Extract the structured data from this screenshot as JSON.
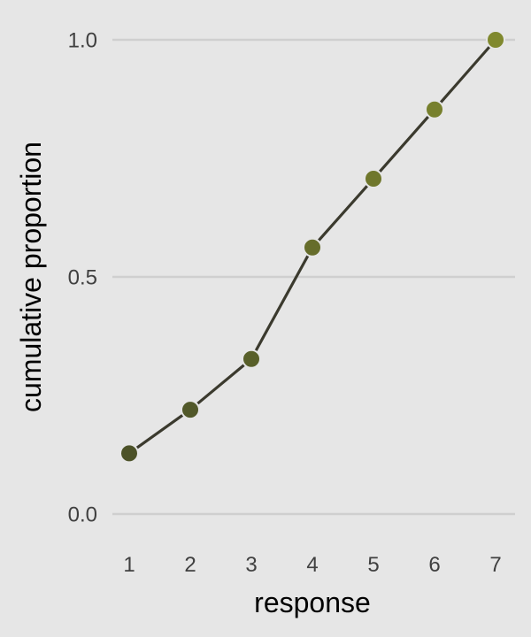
{
  "chart_data": {
    "type": "line",
    "title": "",
    "xlabel": "response",
    "ylabel": "cumulative proportion",
    "x": [
      1,
      2,
      3,
      4,
      5,
      6,
      7
    ],
    "series": [
      {
        "values": [
          0.128,
          0.22,
          0.327,
          0.562,
          0.707,
          0.853,
          1.0
        ]
      }
    ],
    "x_tick_labels": [
      "1",
      "2",
      "3",
      "4",
      "5",
      "6",
      "7"
    ],
    "y_tick_labels": [
      "0.0",
      "0.5",
      "1.0"
    ],
    "y_ticks": [
      0.0,
      0.5,
      1.0
    ],
    "xlim": [
      1,
      7
    ],
    "ylim": [
      0,
      1
    ],
    "grid": "horizontal",
    "legend": "none",
    "colors": {
      "background": "#e6e6e6",
      "gridline": "#cfcfcf",
      "line": "#3b3a2e",
      "point_start": "#4c5228",
      "point_end": "#80892e",
      "tick_text": "#404040",
      "axis_title": "#000000"
    }
  }
}
